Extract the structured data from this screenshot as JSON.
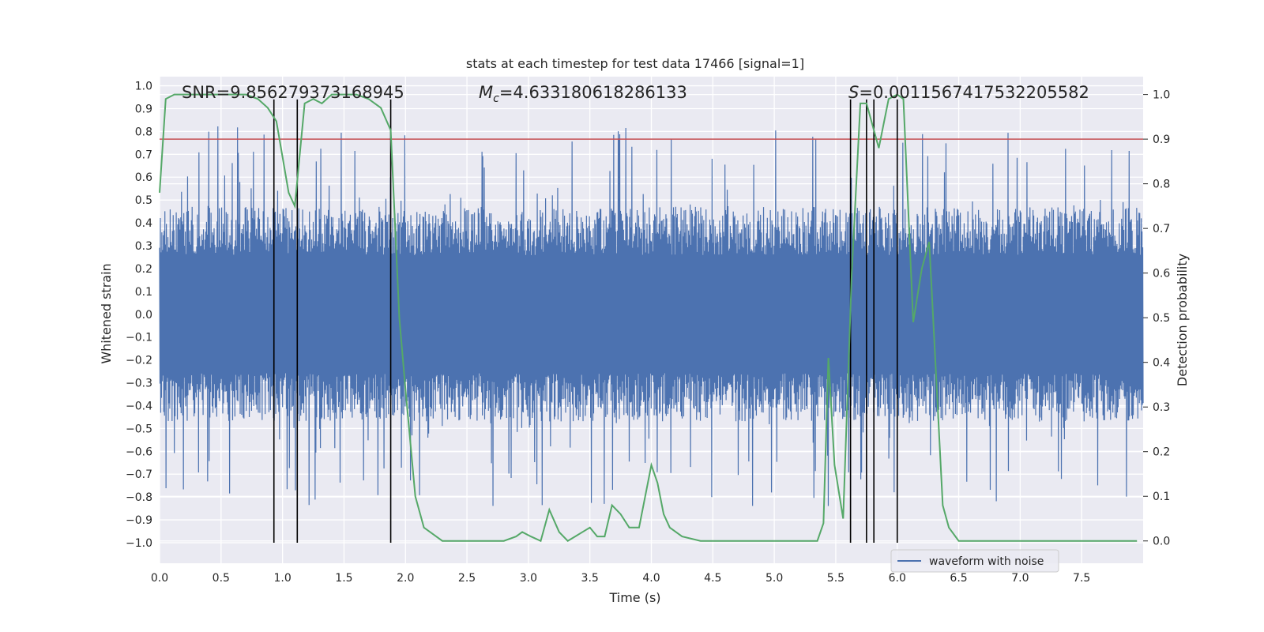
{
  "chart_data": {
    "type": "line",
    "title": "stats at each timestep for test data 17466 [signal=1]",
    "xlabel": "Time (s)",
    "ylabel": "Whitened strain",
    "y2label": "Detection probability",
    "xlim": [
      0,
      8
    ],
    "ylim": [
      -1.09,
      1.04
    ],
    "y2lim": [
      -0.05,
      1.04
    ],
    "xticks": [
      "0.0",
      "0.5",
      "1.0",
      "1.5",
      "2.0",
      "2.5",
      "3.0",
      "3.5",
      "4.0",
      "4.5",
      "5.0",
      "5.5",
      "6.0",
      "6.5",
      "7.0",
      "7.5"
    ],
    "yticks": [
      "1.0",
      "0.9",
      "0.8",
      "0.7",
      "0.6",
      "0.5",
      "0.4",
      "0.3",
      "0.2",
      "0.1",
      "0.0",
      "-0.1",
      "-0.2",
      "-0.3",
      "-0.4",
      "-0.5",
      "-0.6",
      "-0.7",
      "-0.8",
      "-0.9",
      "-1.0"
    ],
    "y2ticks": [
      "0.0",
      "0.1",
      "0.2",
      "0.3",
      "0.4",
      "0.5",
      "0.6",
      "0.7",
      "0.8",
      "0.9",
      "1.0"
    ],
    "legend": {
      "position": "lower-right",
      "entries": [
        "waveform with noise"
      ]
    },
    "annotations": {
      "snr": "SNR=9.856279373168945",
      "mc_prefix": "M",
      "mc_sub": "c",
      "mc_value": "=4.633180618286133",
      "s_prefix": "S",
      "s_value": "=0.0011567417532205582"
    },
    "threshold_probability": 0.9,
    "marker_times": [
      0.93,
      1.12,
      1.88,
      5.62,
      5.75,
      5.81,
      6.0
    ],
    "waveform_envelope": {
      "typical_amplitude": 0.47,
      "max_spike": 0.84,
      "min_spike": -0.88,
      "span": [
        0,
        8
      ]
    },
    "probability_series": {
      "name": "detection probability",
      "color": "#55a868",
      "x": [
        0.0,
        0.05,
        0.12,
        0.3,
        0.5,
        0.7,
        0.8,
        0.88,
        0.95,
        1.0,
        1.05,
        1.1,
        1.18,
        1.25,
        1.32,
        1.4,
        1.5,
        1.6,
        1.7,
        1.8,
        1.88,
        1.95,
        2.0,
        2.08,
        2.15,
        2.25,
        2.3,
        2.4,
        2.5,
        2.6,
        2.7,
        2.8,
        2.9,
        2.95,
        3.02,
        3.1,
        3.17,
        3.25,
        3.32,
        3.38,
        3.44,
        3.5,
        3.56,
        3.62,
        3.68,
        3.75,
        3.82,
        3.9,
        4.0,
        4.05,
        4.1,
        4.15,
        4.25,
        4.4,
        4.6,
        4.8,
        4.9,
        5.0,
        5.2,
        5.35,
        5.4,
        5.44,
        5.49,
        5.56,
        5.63,
        5.7,
        5.75,
        5.8,
        5.85,
        5.93,
        6.0,
        6.05,
        6.13,
        6.2,
        6.26,
        6.32,
        6.37,
        6.42,
        6.5,
        6.6,
        6.8,
        7.0,
        7.5,
        7.95
      ],
      "values": [
        0.78,
        0.99,
        1.0,
        1.0,
        1.0,
        1.0,
        0.99,
        0.97,
        0.94,
        0.86,
        0.78,
        0.75,
        0.98,
        0.99,
        0.98,
        1.0,
        1.0,
        1.0,
        0.99,
        0.97,
        0.92,
        0.5,
        0.34,
        0.1,
        0.03,
        0.01,
        0.0,
        0.0,
        0.0,
        0.0,
        0.0,
        0.0,
        0.01,
        0.02,
        0.01,
        0.0,
        0.07,
        0.02,
        0.0,
        0.01,
        0.02,
        0.03,
        0.01,
        0.01,
        0.08,
        0.06,
        0.03,
        0.03,
        0.17,
        0.13,
        0.06,
        0.03,
        0.01,
        0.0,
        0.0,
        0.0,
        0.0,
        0.0,
        0.0,
        0.0,
        0.04,
        0.41,
        0.17,
        0.05,
        0.6,
        0.98,
        0.98,
        0.93,
        0.88,
        0.99,
        1.0,
        0.99,
        0.49,
        0.61,
        0.67,
        0.35,
        0.08,
        0.03,
        0.0,
        0.0,
        0.0,
        0.0,
        0.0,
        0.0
      ]
    }
  },
  "colors": {
    "waveform": "#4c72b0",
    "probability": "#55a868",
    "threshold": "#c44e52",
    "markers": "#000000",
    "plot_bg": "#eaeaf2",
    "grid": "#ffffff"
  }
}
